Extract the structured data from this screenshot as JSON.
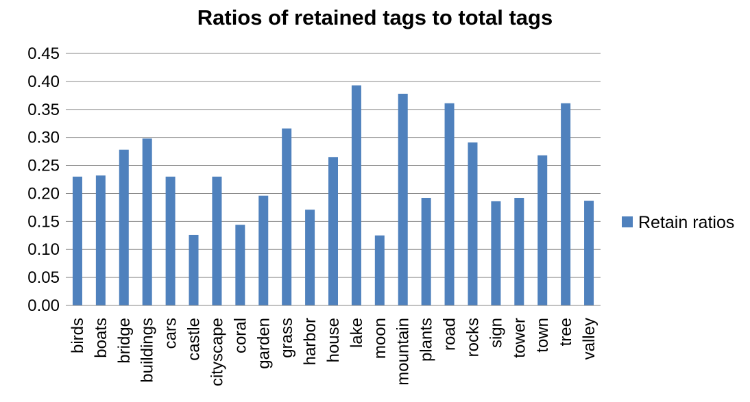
{
  "chart_data": {
    "type": "bar",
    "title": "Ratios of retained tags to total tags",
    "xlabel": "",
    "ylabel": "",
    "ylim": [
      0,
      0.45
    ],
    "yticks": [
      "0.00",
      "0.05",
      "0.10",
      "0.15",
      "0.20",
      "0.25",
      "0.30",
      "0.35",
      "0.40",
      "0.45"
    ],
    "grid": true,
    "legend_position": "right",
    "bar_color": "#4F81BD",
    "categories": [
      "birds",
      "boats",
      "bridge",
      "buildings",
      "cars",
      "castle",
      "cityscape",
      "coral",
      "garden",
      "grass",
      "harbor",
      "house",
      "lake",
      "moon",
      "mountain",
      "plants",
      "road",
      "rocks",
      "sign",
      "tower",
      "town",
      "tree",
      "valley"
    ],
    "series": [
      {
        "name": "Retain ratios",
        "values": [
          0.23,
          0.232,
          0.278,
          0.298,
          0.23,
          0.126,
          0.23,
          0.144,
          0.196,
          0.316,
          0.171,
          0.265,
          0.393,
          0.125,
          0.378,
          0.192,
          0.361,
          0.291,
          0.186,
          0.192,
          0.268,
          0.361,
          0.187
        ]
      }
    ]
  }
}
